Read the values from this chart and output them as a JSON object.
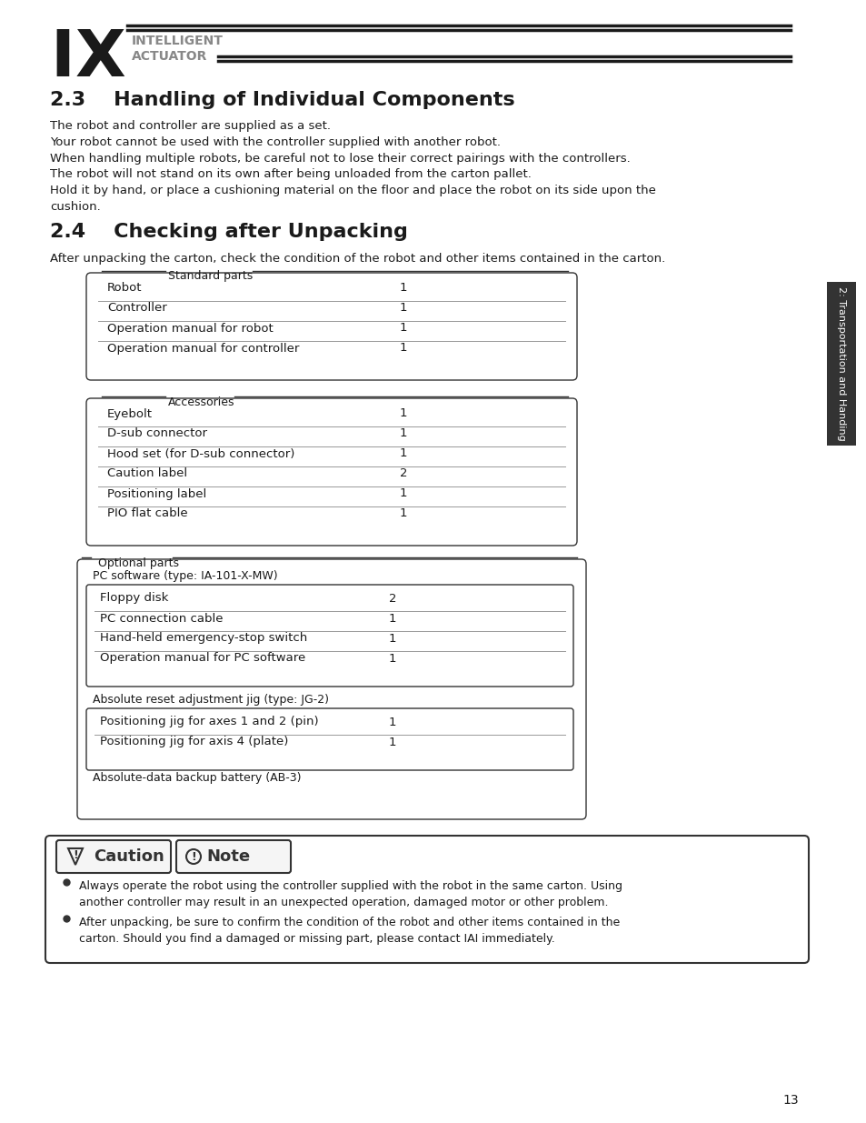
{
  "page_bg": "#ffffff",
  "logo_text1": "INTELLIGENT",
  "logo_text2": "ACTUATOR",
  "section_23_title": "2.3    Handling of Individual Components",
  "section_23_para1": "The robot and controller are supplied as a set.\nYour robot cannot be used with the controller supplied with another robot.\nWhen handling multiple robots, be careful not to lose their correct pairings with the controllers.",
  "section_23_para2": "The robot will not stand on its own after being unloaded from the carton pallet.\nHold it by hand, or place a cushioning material on the floor and place the robot on its side upon the\ncushion.",
  "section_24_title": "2.4    Checking after Unpacking",
  "section_24_intro": "After unpacking the carton, check the condition of the robot and other items contained in the carton.",
  "standard_parts_label": "Standard parts",
  "standard_parts": [
    [
      "Robot",
      "1"
    ],
    [
      "Controller",
      "1"
    ],
    [
      "Operation manual for robot",
      "1"
    ],
    [
      "Operation manual for controller",
      "1"
    ]
  ],
  "accessories_label": "Accessories",
  "accessories": [
    [
      "Eyebolt",
      "1"
    ],
    [
      "D-sub connector",
      "1"
    ],
    [
      "Hood set (for D-sub connector)",
      "1"
    ],
    [
      "Caution label",
      "2"
    ],
    [
      "Positioning label",
      "1"
    ],
    [
      "PIO flat cable",
      "1"
    ]
  ],
  "optional_label": "Optional parts",
  "pc_software_label": "PC software (type: IA-101-X-MW)",
  "pc_software_items": [
    [
      "Floppy disk",
      "2"
    ],
    [
      "PC connection cable",
      "1"
    ],
    [
      "Hand-held emergency-stop switch",
      "1"
    ],
    [
      "Operation manual for PC software",
      "1"
    ]
  ],
  "abs_reset_label": "Absolute reset adjustment jig (type: JG-2)",
  "abs_reset_items": [
    [
      "Positioning jig for axes 1 and 2 (pin)",
      "1"
    ],
    [
      "Positioning jig for axis 4 (plate)",
      "1"
    ]
  ],
  "abs_backup_label": "Absolute-data backup battery (AB-3)",
  "caution_note_title1": "Caution",
  "caution_note_title2": "Note",
  "caution_bullets": [
    "Always operate the robot using the controller supplied with the robot in the same carton. Using\nanother controller may result in an unexpected operation, damaged motor or other problem.",
    "After unpacking, be sure to confirm the condition of the robot and other items contained in the\ncarton. Should you find a damaged or missing part, please contact IAI immediately."
  ],
  "side_label": "2: Transportation and Handing",
  "page_number": "13",
  "text_color": "#000000",
  "light_gray": "#888888",
  "border_color": "#333333",
  "line_color": "#999999"
}
